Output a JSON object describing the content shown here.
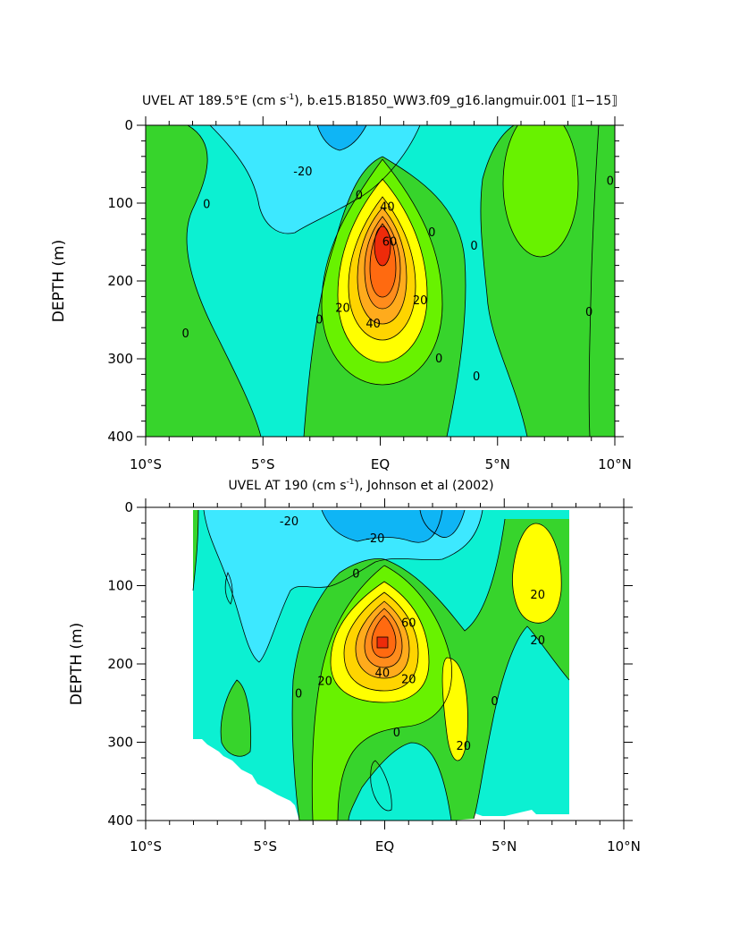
{
  "chart_data": [
    {
      "type": "contour",
      "title": "UVEL AT 189.5°E (cm s$-1$), b.e15.B1850_WW3.f09_g16.langmuir.001 [1-15]",
      "title_main": "UVEL AT 189.5°E (cm s",
      "title_sup": "-1",
      "title_rest": "), b.e15.B1850_WW3.f09_g16.langmuir.001 ⟦1−15⟧",
      "xlabel": "",
      "ylabel": "DEPTH (m)",
      "xlim": [
        -10,
        10
      ],
      "ylim": [
        400,
        0
      ],
      "x_ticks": [
        -10,
        -5,
        0,
        5,
        10
      ],
      "x_tick_labels": [
        "10°S",
        "5°S",
        "EQ",
        "5°N",
        "10°N"
      ],
      "y_ticks": [
        0,
        100,
        200,
        300,
        400
      ],
      "y_tick_labels": [
        "0",
        "100",
        "200",
        "300",
        "400"
      ],
      "contour_interval": 10,
      "core": {
        "lat": 0,
        "depth": 165,
        "max_speed": 80
      },
      "contour_labels": [
        {
          "text": "-20",
          "lat": -3.3,
          "depth": 60
        },
        {
          "text": "0",
          "lat": -7.4,
          "depth": 102
        },
        {
          "text": "0",
          "lat": -8.3,
          "depth": 268
        },
        {
          "text": "0",
          "lat": -0.9,
          "depth": 90
        },
        {
          "text": "0",
          "lat": -2.6,
          "depth": 250
        },
        {
          "text": "40",
          "lat": 0.3,
          "depth": 105
        },
        {
          "text": "60",
          "lat": 0.4,
          "depth": 150
        },
        {
          "text": "20",
          "lat": -1.6,
          "depth": 235
        },
        {
          "text": "40",
          "lat": -0.3,
          "depth": 255
        },
        {
          "text": "20",
          "lat": 1.7,
          "depth": 225
        },
        {
          "text": "0",
          "lat": 2.2,
          "depth": 138
        },
        {
          "text": "0",
          "lat": 2.5,
          "depth": 300
        },
        {
          "text": "0",
          "lat": 4.0,
          "depth": 155
        },
        {
          "text": "0",
          "lat": 4.1,
          "depth": 323
        },
        {
          "text": "0",
          "lat": 9.8,
          "depth": 72
        },
        {
          "text": "0",
          "lat": 8.9,
          "depth": 240
        }
      ]
    },
    {
      "type": "contour",
      "title_main": "UVEL AT 190 (cm s",
      "title_sup": "-1",
      "title_rest": "), Johnson et al (2002)",
      "xlabel": "",
      "ylabel": "DEPTH (m)",
      "xlim": [
        -10,
        10
      ],
      "ylim": [
        400,
        0
      ],
      "x_ticks": [
        -10,
        -5,
        0,
        5,
        10
      ],
      "x_tick_labels": [
        "10°S",
        "5°S",
        "EQ",
        "5°N",
        "10°N"
      ],
      "y_ticks": [
        0,
        100,
        200,
        300,
        400
      ],
      "y_tick_labels": [
        "0",
        "100",
        "200",
        "300",
        "400"
      ],
      "data_extent_lat": [
        -8,
        8
      ],
      "contour_interval": 10,
      "core": {
        "lat": 0,
        "depth": 150,
        "max_speed": 80
      },
      "contour_labels": [
        {
          "text": "-20",
          "lat": -4.0,
          "depth": 18
        },
        {
          "text": "-20",
          "lat": -0.4,
          "depth": 40
        },
        {
          "text": "0",
          "lat": -1.2,
          "depth": 85
        },
        {
          "text": "60",
          "lat": 1.0,
          "depth": 148
        },
        {
          "text": "40",
          "lat": -0.1,
          "depth": 212
        },
        {
          "text": "20",
          "lat": -2.5,
          "depth": 222
        },
        {
          "text": "20",
          "lat": 1.0,
          "depth": 220
        },
        {
          "text": "0",
          "lat": -3.6,
          "depth": 238
        },
        {
          "text": "0",
          "lat": 0.5,
          "depth": 288
        },
        {
          "text": "20",
          "lat": 3.3,
          "depth": 305
        },
        {
          "text": "0",
          "lat": 4.6,
          "depth": 248
        },
        {
          "text": "20",
          "lat": 6.4,
          "depth": 112
        },
        {
          "text": "20",
          "lat": 6.4,
          "depth": 170
        }
      ]
    }
  ],
  "colors": {
    "level_neg20": "#0fb5f5",
    "level_neg10": "#3de8ff",
    "level_0": "#0cf0d2",
    "level_10": "#37d42c",
    "level_20": "#68f200",
    "level_30": "#ffff00",
    "level_40": "#ffd400",
    "level_50": "#ffab1c",
    "level_60": "#ff8c1c",
    "level_70": "#ff6a10",
    "level_80": "#ee2b0a"
  }
}
